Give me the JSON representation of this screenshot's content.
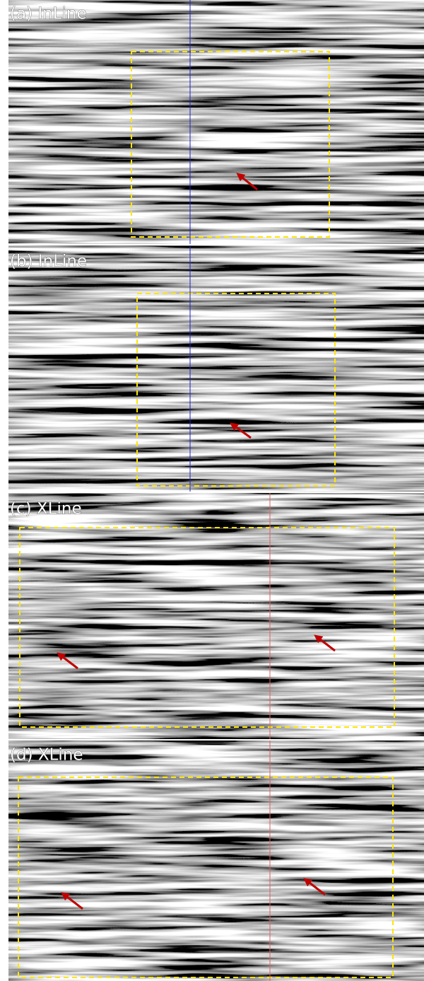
{
  "panels": [
    {
      "label": "(a) InLine"
    },
    {
      "label": "(b) InLine"
    },
    {
      "label": "(c) XLine"
    },
    {
      "label": "(d) XLine"
    }
  ]
}
